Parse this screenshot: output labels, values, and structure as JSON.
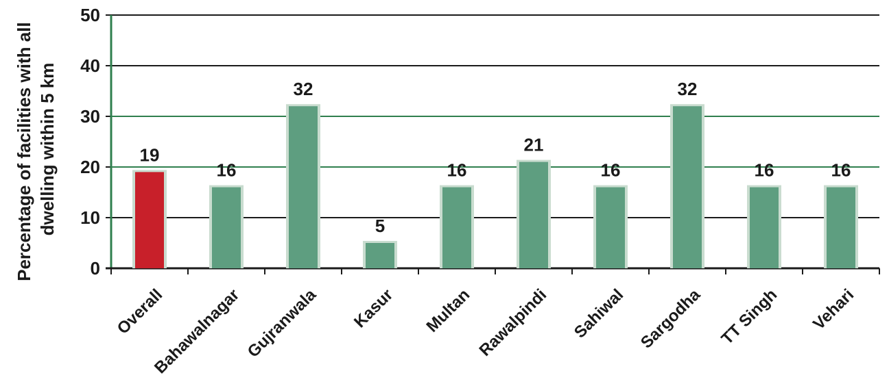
{
  "chart_data": {
    "type": "bar",
    "title": "",
    "ylabel": [
      "Percentage of facilities with all",
      "dwelling within 5 km"
    ],
    "xlabel": "",
    "ylim": [
      0,
      50
    ],
    "yticks": [
      0,
      10,
      20,
      30,
      40,
      50
    ],
    "grid": true,
    "categories": [
      "Overall",
      "Bahawalnagar",
      "Gujranwala",
      "Kasur",
      "Multan",
      "Rawalpindi",
      "Sahiwal",
      "Sargodha",
      "TT Singh",
      "Vehari"
    ],
    "values": [
      19,
      16,
      32,
      5,
      16,
      21,
      16,
      32,
      16,
      16
    ],
    "data_labels": [
      "19",
      "16",
      "32",
      "5",
      "16",
      "21",
      "16",
      "32",
      "16",
      "16"
    ],
    "colors": {
      "highlight": "#c8202a",
      "bar": "#5e9e80",
      "bar_edge": "#c9dccf",
      "grid": "#1a1a1a",
      "grid_highlight": "#2f7f4e"
    },
    "highlight_index": 0
  }
}
